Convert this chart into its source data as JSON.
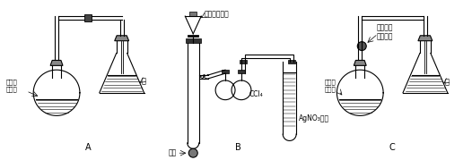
{
  "bg_color": "#ffffff",
  "line_color": "#000000",
  "label_A": "A",
  "label_B": "B",
  "label_C": "C",
  "text_bromine_benzene": "溴和苯\n混合液",
  "text_water_A": "水",
  "text_bromine_top_B": "溴和苯混合液",
  "text_ccl4": "CCl₄",
  "text_iron": "铁粉",
  "text_agno3": "AgNO₃溶液",
  "text_rubber_bag": "软橡胶袋\n内装铁粉",
  "text_bromine_C": "溴和苯\n混合液",
  "text_water_C": "水",
  "figsize": [
    5.26,
    1.79
  ],
  "dpi": 100
}
